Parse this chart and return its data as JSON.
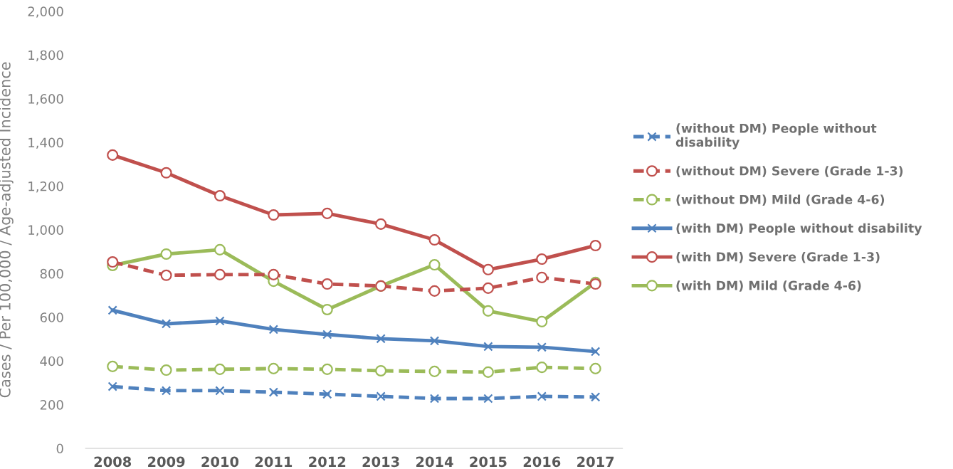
{
  "chart_data": {
    "type": "line",
    "ylabel": "Cases / Per 100,000 / Age-adjusted Incidence",
    "categories": [
      "2008",
      "2009",
      "2010",
      "2011",
      "2012",
      "2013",
      "2014",
      "2015",
      "2016",
      "2017"
    ],
    "ylim": [
      0,
      2000
    ],
    "yticks": [
      0,
      {
        "value": 200,
        "label": "200"
      },
      {
        "value": 400,
        "label": "400"
      },
      {
        "value": 600,
        "label": "600"
      },
      {
        "value": 800,
        "label": "800"
      },
      {
        "value": 1000,
        "label": "1,000"
      },
      {
        "value": 1200,
        "label": "1,200"
      },
      {
        "value": 1400,
        "label": "1,400"
      },
      {
        "value": 1600,
        "label": "1,600"
      },
      {
        "value": 1800,
        "label": "1,800"
      },
      {
        "value": 2000,
        "label": "2,000"
      }
    ],
    "grid": false,
    "legend": "right",
    "series": [
      {
        "name": "(without DM) People without\ndisability",
        "color": "#4f81bd",
        "marker": "cross",
        "line_style": "dashed",
        "values": [
          283,
          264,
          264,
          257,
          248,
          238,
          228,
          228,
          238,
          235
        ]
      },
      {
        "name": "(without DM) Severe (Grade 1-3)",
        "color": "#c0504d",
        "marker": "circle",
        "line_style": "dashed",
        "values": [
          853,
          792,
          795,
          795,
          752,
          743,
          720,
          733,
          782,
          752
        ]
      },
      {
        "name": "(without DM) Mild (Grade 4-6)",
        "color": "#9bbb59",
        "marker": "circle",
        "line_style": "dashed",
        "values": [
          375,
          358,
          362,
          365,
          362,
          355,
          352,
          349,
          371,
          365
        ]
      },
      {
        "name": "(with DM) People without disability",
        "color": "#4f81bd",
        "marker": "cross",
        "line_style": "solid",
        "values": [
          632,
          570,
          583,
          544,
          521,
          502,
          492,
          466,
          463,
          443
        ]
      },
      {
        "name": "(with DM) Severe (Grade 1-3)",
        "color": "#c0504d",
        "marker": "circle",
        "line_style": "solid",
        "values": [
          1342,
          1261,
          1156,
          1068,
          1075,
          1026,
          954,
          818,
          866,
          928
        ]
      },
      {
        "name": "(with DM) Mild (Grade 4-6)",
        "color": "#9bbb59",
        "marker": "circle",
        "line_style": "solid",
        "values": [
          837,
          889,
          909,
          765,
          635,
          743,
          840,
          629,
          580,
          759
        ]
      }
    ]
  }
}
